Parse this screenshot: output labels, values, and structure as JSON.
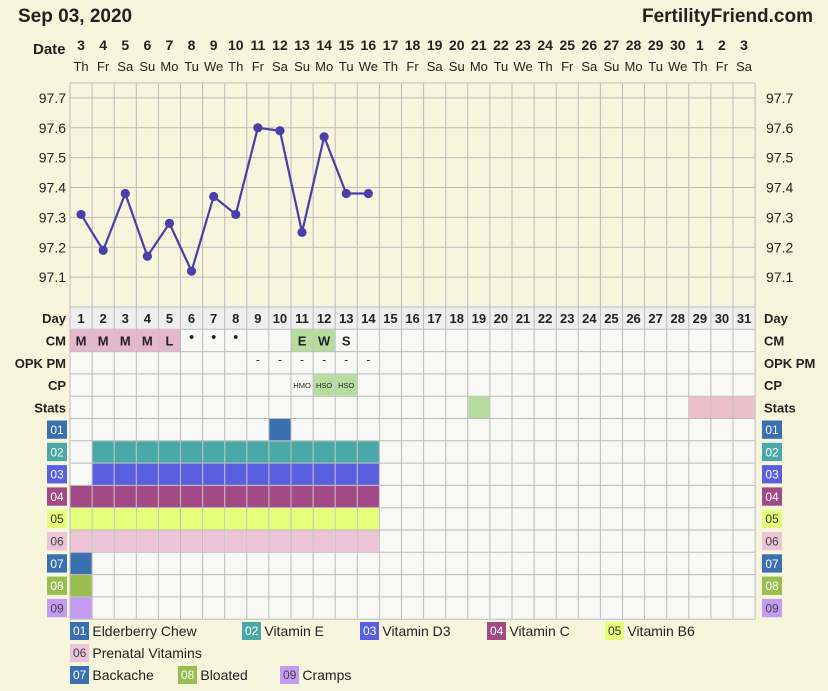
{
  "header": {
    "date_title": "Sep 03, 2020",
    "site": "FertilityFriend.com"
  },
  "labels": {
    "date": "Date",
    "day": "Day",
    "cm": "CM",
    "opk": "OPK PM",
    "cp": "CP",
    "stats": "Stats"
  },
  "dates": [
    "3",
    "4",
    "5",
    "6",
    "7",
    "8",
    "9",
    "10",
    "11",
    "12",
    "13",
    "14",
    "15",
    "16",
    "17",
    "18",
    "19",
    "20",
    "21",
    "22",
    "23",
    "24",
    "25",
    "26",
    "27",
    "28",
    "29",
    "30",
    "1",
    "2",
    "3"
  ],
  "weekdays": [
    "Th",
    "Fr",
    "Sa",
    "Su",
    "Mo",
    "Tu",
    "We",
    "Th",
    "Fr",
    "Sa",
    "Su",
    "Mo",
    "Tu",
    "We",
    "Th",
    "Fr",
    "Sa",
    "Su",
    "Mo",
    "Tu",
    "We",
    "Th",
    "Fr",
    "Sa",
    "Su",
    "Mo",
    "Tu",
    "We",
    "Th",
    "Fr",
    "Sa"
  ],
  "cycle_days": [
    "1",
    "2",
    "3",
    "4",
    "5",
    "6",
    "7",
    "8",
    "9",
    "10",
    "11",
    "12",
    "13",
    "14",
    "15",
    "16",
    "17",
    "18",
    "19",
    "20",
    "21",
    "22",
    "23",
    "24",
    "25",
    "26",
    "27",
    "28",
    "29",
    "30",
    "31"
  ],
  "chart_data": {
    "type": "line",
    "x": [
      1,
      2,
      3,
      4,
      5,
      6,
      7,
      8,
      9,
      10,
      11,
      12,
      13,
      14
    ],
    "series": [
      {
        "values": [
          97.31,
          97.19,
          97.38,
          97.17,
          97.28,
          97.12,
          97.37,
          97.31,
          97.6,
          97.59,
          97.25,
          97.57,
          97.38,
          97.38
        ]
      }
    ],
    "y_ticks": [
      "97.7",
      "97.6",
      "97.5",
      "97.4",
      "97.3",
      "97.2",
      "97.1"
    ],
    "ylim": [
      97.0,
      97.75
    ],
    "grid": true,
    "line_color": "#4a3ea8"
  },
  "cm": [
    {
      "day": 1,
      "label": "M"
    },
    {
      "day": 2,
      "label": "M"
    },
    {
      "day": 3,
      "label": "M"
    },
    {
      "day": 4,
      "label": "M"
    },
    {
      "day": 5,
      "label": "L"
    },
    {
      "day": 6,
      "label": "•"
    },
    {
      "day": 7,
      "label": "•"
    },
    {
      "day": 8,
      "label": "•"
    },
    {
      "day": 11,
      "label": "E"
    },
    {
      "day": 12,
      "label": "W"
    },
    {
      "day": 13,
      "label": "S"
    }
  ],
  "opk": [
    {
      "day": 9,
      "label": "-"
    },
    {
      "day": 10,
      "label": "-"
    },
    {
      "day": 11,
      "label": "-"
    },
    {
      "day": 12,
      "label": "-"
    },
    {
      "day": 13,
      "label": "-"
    },
    {
      "day": 14,
      "label": "-"
    }
  ],
  "cp": [
    {
      "day": 11,
      "label": "HMO"
    },
    {
      "day": 12,
      "label": "HSO"
    },
    {
      "day": 13,
      "label": "HSO"
    }
  ],
  "stats_marks": [
    {
      "day": 19,
      "color": "#b6dd9e"
    },
    {
      "day": 29,
      "color": "#ecbfcc"
    },
    {
      "day": 30,
      "color": "#ecbfcc"
    },
    {
      "day": 31,
      "color": "#ecbfcc"
    }
  ],
  "colors": {
    "bg": "#f7f5dc",
    "grid_line": "#bbbbbb",
    "cell_bg": "#f8f8f6",
    "cm_fill": "#e6b6cd",
    "green_fill": "#b6dd9e"
  },
  "symptoms": [
    {
      "code": "01",
      "name": "Elderberry Chew",
      "color": "#3a6fb0",
      "text": "#ffffff",
      "days": [
        10
      ]
    },
    {
      "code": "02",
      "name": "Vitamin E",
      "color": "#4ba8a8",
      "text": "#ffffff",
      "days": [
        2,
        3,
        4,
        5,
        6,
        7,
        8,
        9,
        10,
        11,
        12,
        13,
        14
      ]
    },
    {
      "code": "03",
      "name": "Vitamin D3",
      "color": "#5a5fe0",
      "text": "#ffffff",
      "days": [
        2,
        3,
        4,
        5,
        6,
        7,
        8,
        9,
        10,
        11,
        12,
        13,
        14
      ]
    },
    {
      "code": "04",
      "name": "Vitamin C",
      "color": "#a14a86",
      "text": "#ffffff",
      "days": [
        1,
        2,
        3,
        4,
        5,
        6,
        7,
        8,
        9,
        10,
        11,
        12,
        13,
        14
      ]
    },
    {
      "code": "05",
      "name": "Vitamin B6",
      "color": "#e6ff7a",
      "text": "#333333",
      "days": [
        1,
        2,
        3,
        4,
        5,
        6,
        7,
        8,
        9,
        10,
        11,
        12,
        13,
        14
      ]
    },
    {
      "code": "06",
      "name": "Prenatal Vitamins",
      "color": "#ecc4d8",
      "text": "#444444",
      "days": [
        1,
        2,
        3,
        4,
        5,
        6,
        7,
        8,
        9,
        10,
        11,
        12,
        13,
        14
      ]
    },
    {
      "code": "07",
      "name": "Backache",
      "color": "#3a6fb0",
      "text": "#ffffff",
      "days": [
        1
      ]
    },
    {
      "code": "08",
      "name": "Bloated",
      "color": "#97be4e",
      "text": "#ffffff",
      "days": [
        1
      ]
    },
    {
      "code": "09",
      "name": "Cramps",
      "color": "#c49bf2",
      "text": "#444444",
      "days": [
        1
      ]
    }
  ]
}
